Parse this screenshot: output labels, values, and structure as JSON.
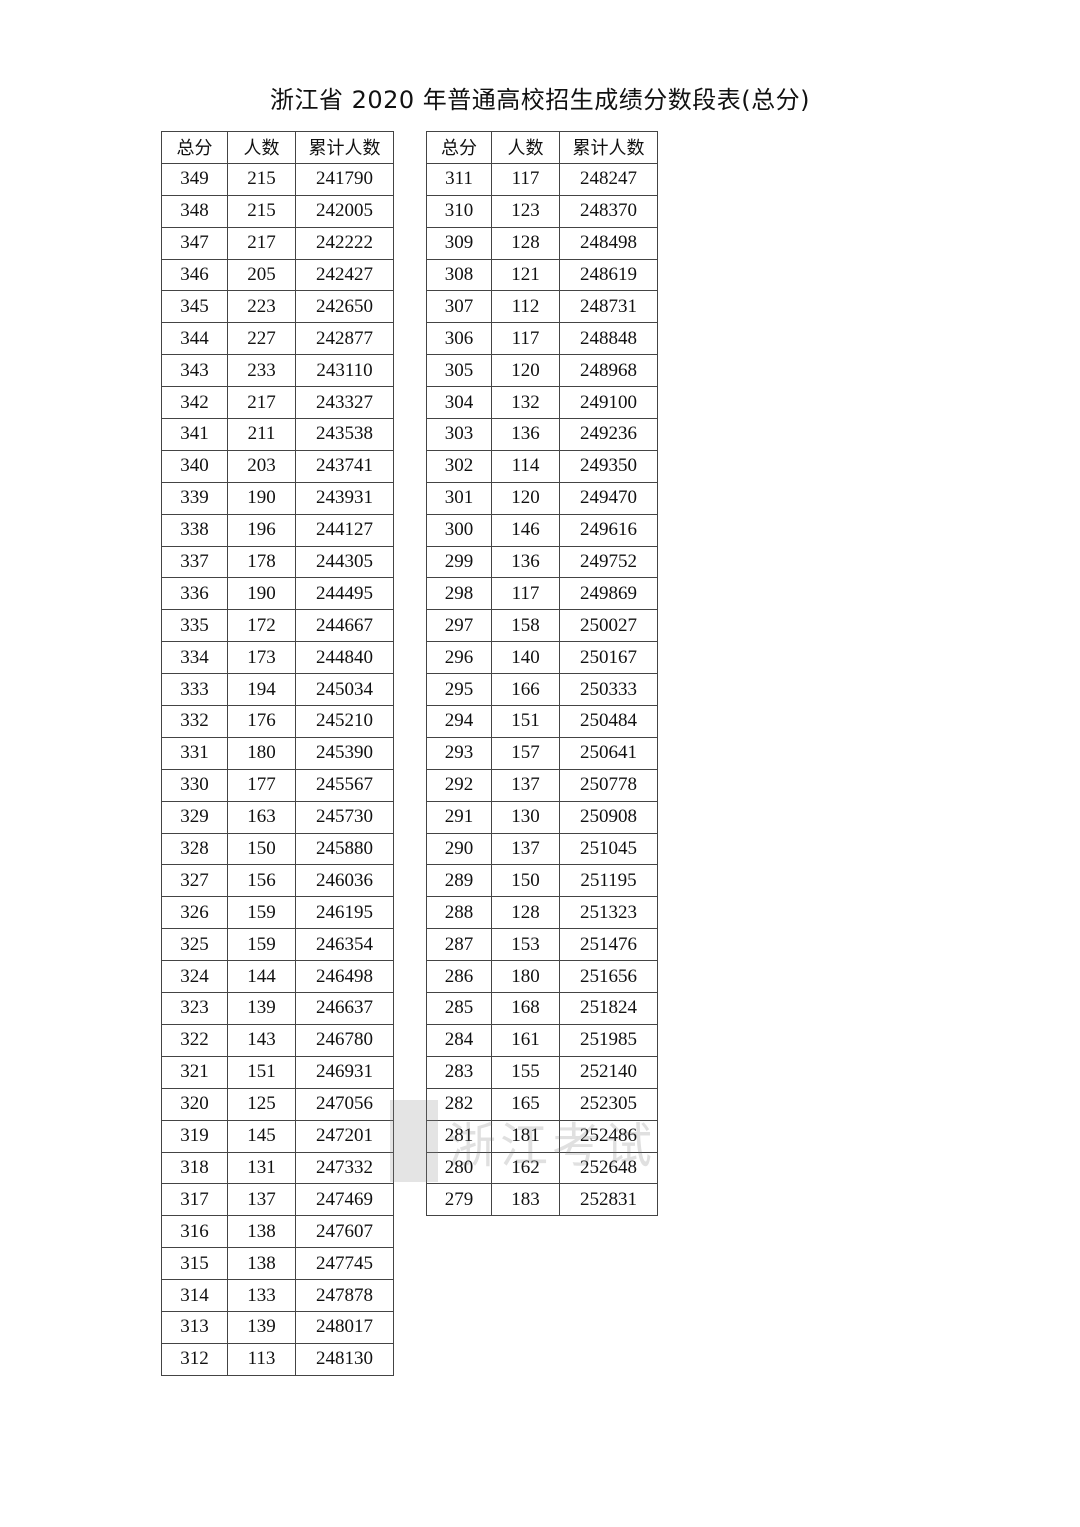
{
  "title": "浙江省 2020 年普通高校招生成绩分数段表(总分)",
  "headers": [
    "总分",
    "人数",
    "累计人数"
  ],
  "watermark": "浙江考试",
  "left_table": [
    [
      349,
      215,
      241790
    ],
    [
      348,
      215,
      242005
    ],
    [
      347,
      217,
      242222
    ],
    [
      346,
      205,
      242427
    ],
    [
      345,
      223,
      242650
    ],
    [
      344,
      227,
      242877
    ],
    [
      343,
      233,
      243110
    ],
    [
      342,
      217,
      243327
    ],
    [
      341,
      211,
      243538
    ],
    [
      340,
      203,
      243741
    ],
    [
      339,
      190,
      243931
    ],
    [
      338,
      196,
      244127
    ],
    [
      337,
      178,
      244305
    ],
    [
      336,
      190,
      244495
    ],
    [
      335,
      172,
      244667
    ],
    [
      334,
      173,
      244840
    ],
    [
      333,
      194,
      245034
    ],
    [
      332,
      176,
      245210
    ],
    [
      331,
      180,
      245390
    ],
    [
      330,
      177,
      245567
    ],
    [
      329,
      163,
      245730
    ],
    [
      328,
      150,
      245880
    ],
    [
      327,
      156,
      246036
    ],
    [
      326,
      159,
      246195
    ],
    [
      325,
      159,
      246354
    ],
    [
      324,
      144,
      246498
    ],
    [
      323,
      139,
      246637
    ],
    [
      322,
      143,
      246780
    ],
    [
      321,
      151,
      246931
    ],
    [
      320,
      125,
      247056
    ],
    [
      319,
      145,
      247201
    ],
    [
      318,
      131,
      247332
    ],
    [
      317,
      137,
      247469
    ],
    [
      316,
      138,
      247607
    ],
    [
      315,
      138,
      247745
    ],
    [
      314,
      133,
      247878
    ],
    [
      313,
      139,
      248017
    ],
    [
      312,
      113,
      248130
    ]
  ],
  "right_table": [
    [
      311,
      117,
      248247
    ],
    [
      310,
      123,
      248370
    ],
    [
      309,
      128,
      248498
    ],
    [
      308,
      121,
      248619
    ],
    [
      307,
      112,
      248731
    ],
    [
      306,
      117,
      248848
    ],
    [
      305,
      120,
      248968
    ],
    [
      304,
      132,
      249100
    ],
    [
      303,
      136,
      249236
    ],
    [
      302,
      114,
      249350
    ],
    [
      301,
      120,
      249470
    ],
    [
      300,
      146,
      249616
    ],
    [
      299,
      136,
      249752
    ],
    [
      298,
      117,
      249869
    ],
    [
      297,
      158,
      250027
    ],
    [
      296,
      140,
      250167
    ],
    [
      295,
      166,
      250333
    ],
    [
      294,
      151,
      250484
    ],
    [
      293,
      157,
      250641
    ],
    [
      292,
      137,
      250778
    ],
    [
      291,
      130,
      250908
    ],
    [
      290,
      137,
      251045
    ],
    [
      289,
      150,
      251195
    ],
    [
      288,
      128,
      251323
    ],
    [
      287,
      153,
      251476
    ],
    [
      286,
      180,
      251656
    ],
    [
      285,
      168,
      251824
    ],
    [
      284,
      161,
      251985
    ],
    [
      283,
      155,
      252140
    ],
    [
      282,
      165,
      252305
    ],
    [
      281,
      181,
      252486
    ],
    [
      280,
      162,
      252648
    ],
    [
      279,
      183,
      252831
    ]
  ]
}
